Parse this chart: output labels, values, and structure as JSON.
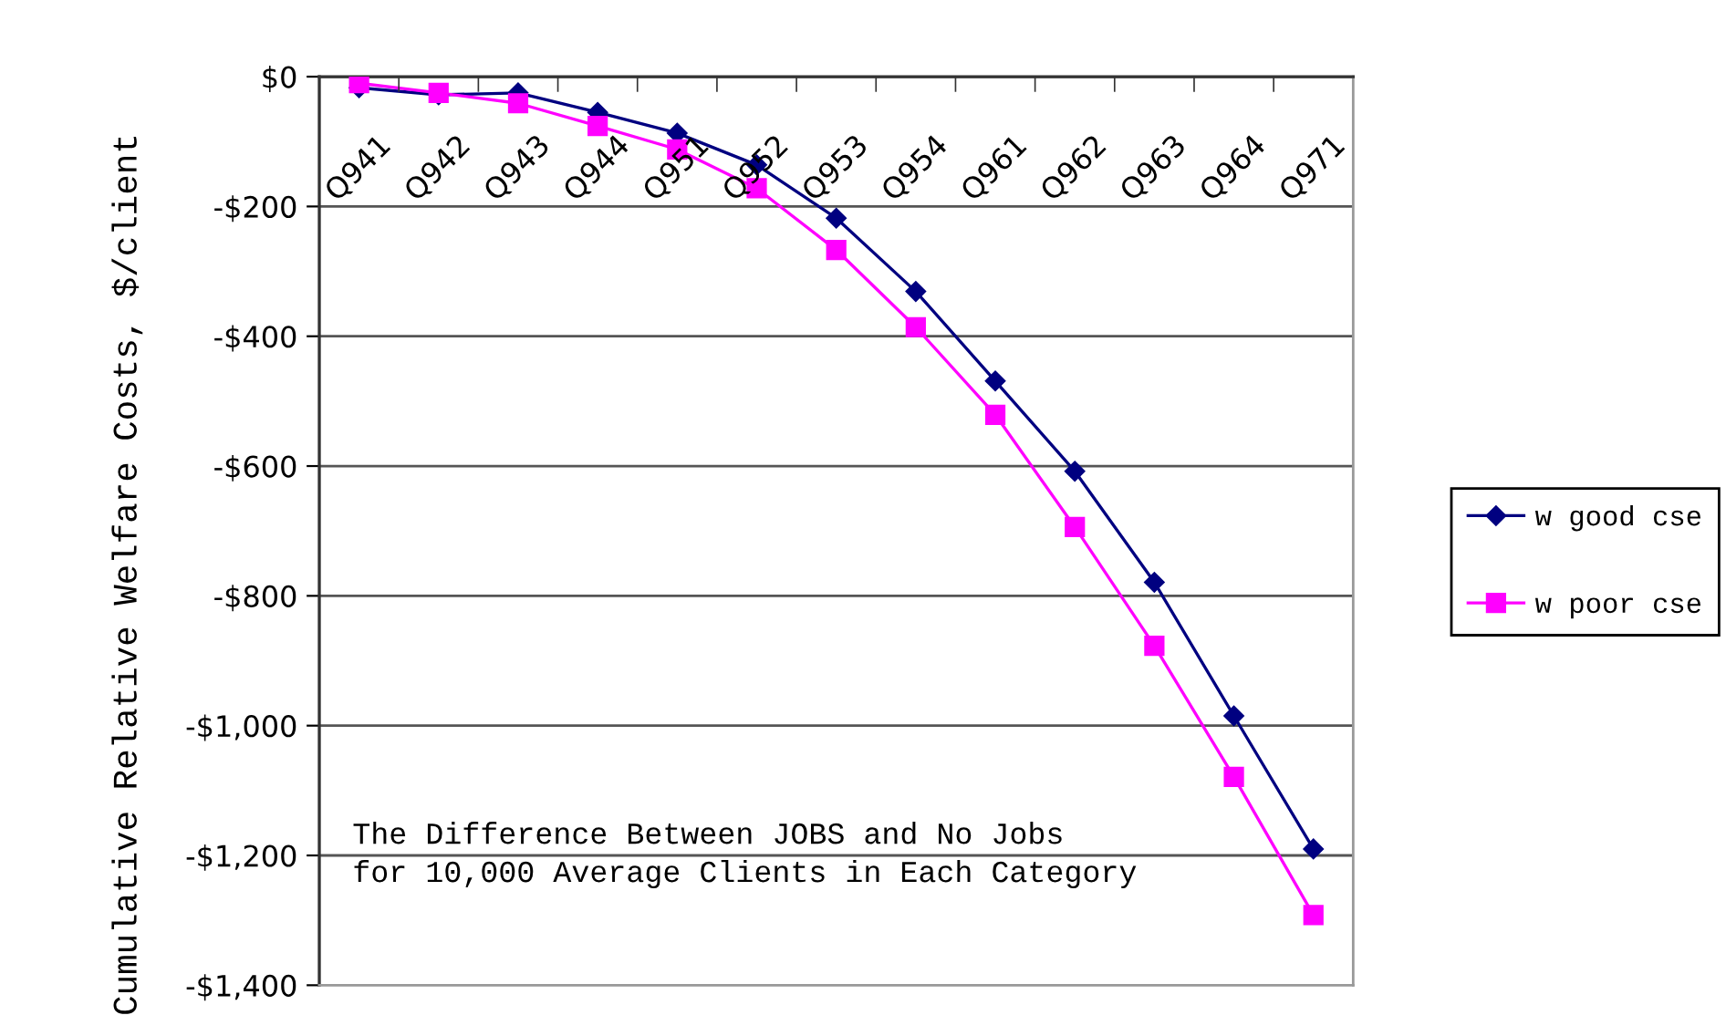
{
  "chart_data": {
    "type": "line",
    "ylabel": "Cumulative Relative Welfare Costs, $/client",
    "annotations": [
      "The Difference Between JOBS and No Jobs\nfor 10,000 Average Clients in Each Category"
    ],
    "categories": [
      "Q941",
      "Q942",
      "Q943",
      "Q944",
      "Q951",
      "Q952",
      "Q953",
      "Q954",
      "Q961",
      "Q962",
      "Q963",
      "Q964",
      "Q971"
    ],
    "series": [
      {
        "name": "w good cse",
        "color": "#000080",
        "marker": "diamond",
        "values": [
          -17,
          -28,
          -25,
          -55,
          -87,
          -136,
          -218,
          -331,
          -469,
          -608,
          -779,
          -985,
          -1190
        ]
      },
      {
        "name": "w poor cse",
        "color": "#ff00ff",
        "marker": "square",
        "values": [
          -10,
          -25,
          -41,
          -76,
          -112,
          -172,
          -267,
          -386,
          -521,
          -694,
          -877,
          -1079,
          -1292
        ]
      }
    ],
    "ylim": [
      -1400,
      0
    ],
    "yticks": [
      {
        "value": 0,
        "label": "$0"
      },
      {
        "value": -200,
        "label": "-$200"
      },
      {
        "value": -400,
        "label": "-$400"
      },
      {
        "value": -600,
        "label": "-$600"
      },
      {
        "value": -800,
        "label": "-$800"
      },
      {
        "value": -1000,
        "label": "-$1,000"
      },
      {
        "value": -1200,
        "label": "-$1,200"
      },
      {
        "value": -1400,
        "label": "-$1,400"
      }
    ],
    "grid": "y",
    "legend": "right",
    "line_style": "solid"
  }
}
